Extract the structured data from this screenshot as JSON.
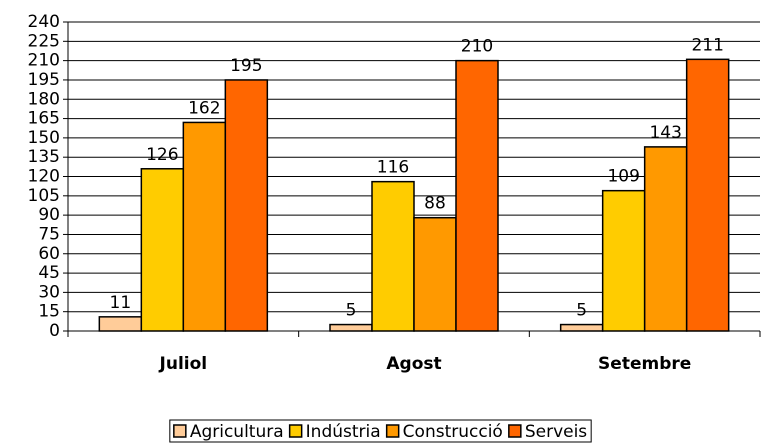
{
  "chart_data": {
    "type": "bar",
    "categories": [
      "Juliol",
      "Agost",
      "Setembre"
    ],
    "series": [
      {
        "name": "Agricultura",
        "color": "#ffcc99",
        "values": [
          11,
          5,
          5
        ]
      },
      {
        "name": "Indústria",
        "color": "#ffcc00",
        "values": [
          126,
          116,
          109
        ]
      },
      {
        "name": "Construcció",
        "color": "#ff9900",
        "values": [
          162,
          88,
          143
        ]
      },
      {
        "name": "Serveis",
        "color": "#ff6600",
        "values": [
          195,
          210,
          211
        ]
      }
    ],
    "ylim": [
      0,
      240
    ],
    "yticks": [
      0,
      15,
      30,
      45,
      60,
      75,
      90,
      105,
      120,
      135,
      150,
      165,
      180,
      195,
      210,
      225,
      240
    ],
    "grid": true,
    "legend": "bottom"
  }
}
